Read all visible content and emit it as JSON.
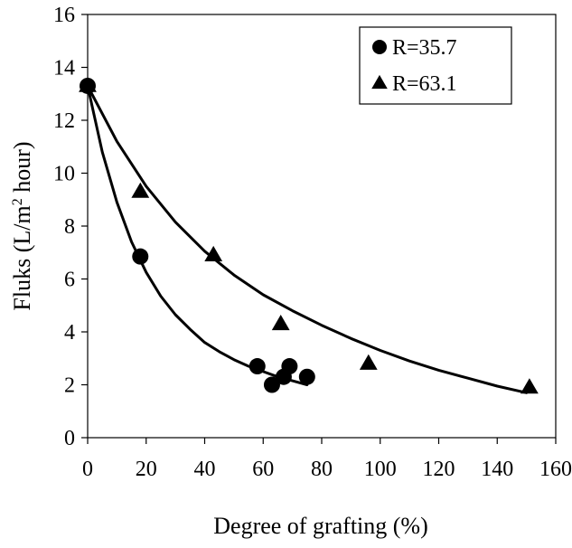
{
  "chart_data": {
    "type": "scatter",
    "xlabel": "Degree of grafting (%)",
    "ylabel_parts": [
      "Fluks (L/m",
      "2",
      " hour)"
    ],
    "xlim": [
      0,
      160
    ],
    "ylim": [
      0,
      16
    ],
    "x_ticks": [
      0,
      20,
      40,
      60,
      80,
      100,
      120,
      140,
      160
    ],
    "y_ticks": [
      0,
      2,
      4,
      6,
      8,
      10,
      12,
      14,
      16
    ],
    "x_tick_labels": [
      "0",
      "20",
      "40",
      "60",
      "80",
      "100",
      "120",
      "140",
      "160"
    ],
    "y_tick_labels": [
      "0",
      "2",
      "4",
      "6",
      "8",
      "10",
      "12",
      "14",
      "16"
    ],
    "grid": false,
    "legend_position": "top-right",
    "series": [
      {
        "name": "R=35.7",
        "marker": "circle",
        "color": "#000000",
        "points": [
          [
            0,
            13.3
          ],
          [
            18,
            6.85
          ],
          [
            58,
            2.7
          ],
          [
            63,
            2.0
          ],
          [
            67,
            2.3
          ],
          [
            69,
            2.7
          ],
          [
            75,
            2.3
          ]
        ],
        "trend": [
          [
            0,
            13.3
          ],
          [
            5,
            10.8
          ],
          [
            10,
            8.9
          ],
          [
            15,
            7.4
          ],
          [
            20,
            6.25
          ],
          [
            25,
            5.35
          ],
          [
            30,
            4.65
          ],
          [
            35,
            4.1
          ],
          [
            40,
            3.6
          ],
          [
            45,
            3.25
          ],
          [
            50,
            2.95
          ],
          [
            55,
            2.7
          ],
          [
            60,
            2.5
          ],
          [
            65,
            2.3
          ],
          [
            70,
            2.15
          ],
          [
            75,
            2.0
          ]
        ]
      },
      {
        "name": "R=63.1",
        "marker": "triangle",
        "color": "#000000",
        "points": [
          [
            0,
            13.3
          ],
          [
            18,
            9.3
          ],
          [
            43,
            6.9
          ],
          [
            66,
            4.3
          ],
          [
            96,
            2.8
          ],
          [
            151,
            1.9
          ]
        ],
        "trend": [
          [
            0,
            13.3
          ],
          [
            10,
            11.2
          ],
          [
            20,
            9.5
          ],
          [
            30,
            8.15
          ],
          [
            40,
            7.05
          ],
          [
            50,
            6.15
          ],
          [
            60,
            5.4
          ],
          [
            70,
            4.8
          ],
          [
            80,
            4.25
          ],
          [
            90,
            3.75
          ],
          [
            100,
            3.3
          ],
          [
            110,
            2.9
          ],
          [
            120,
            2.55
          ],
          [
            130,
            2.25
          ],
          [
            140,
            1.95
          ],
          [
            150,
            1.7
          ]
        ]
      }
    ]
  }
}
